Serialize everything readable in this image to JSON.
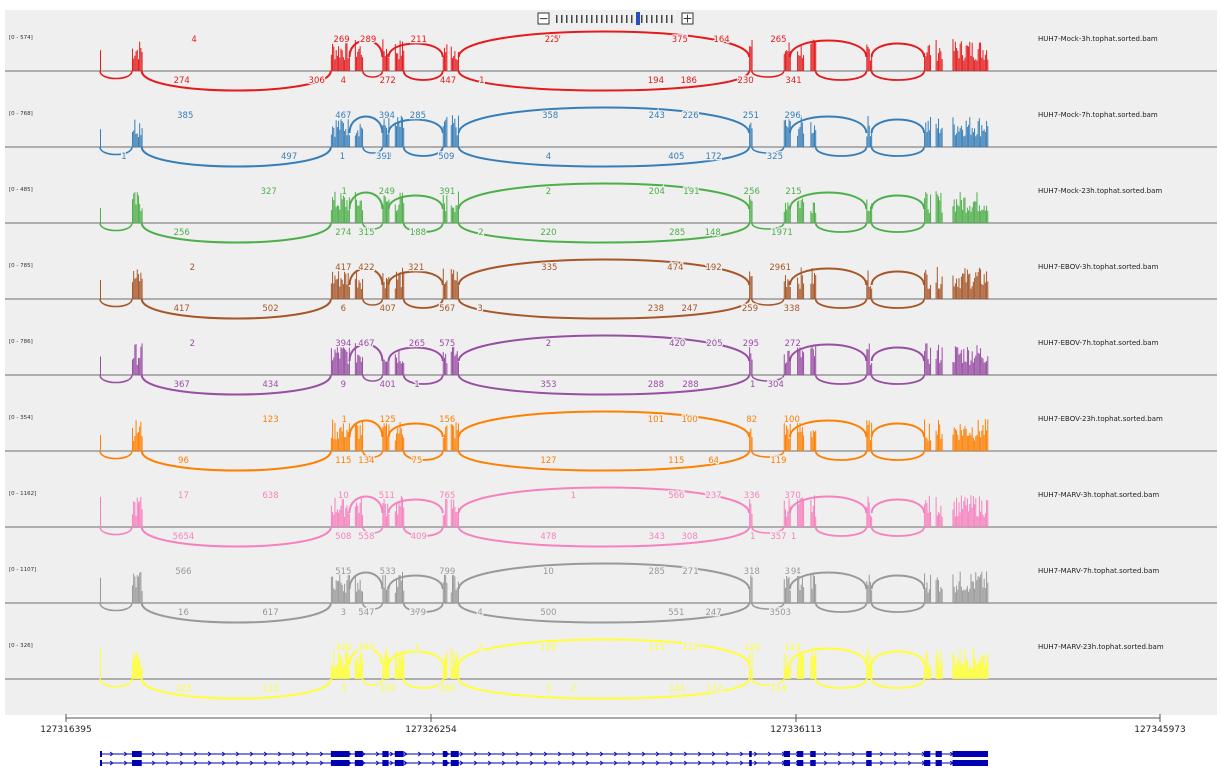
{
  "zoom": {
    "minus": "−",
    "plus": "+",
    "ticks": 24,
    "current": 16
  },
  "tracks": [
    {
      "name": "HUH7-Mock-3h.tophat.sorted.bam",
      "range": "[0 - 574]",
      "color": "#e41a1c",
      "above": [
        [
          "269",
          0.272
        ],
        [
          "289",
          0.302
        ],
        [
          "211",
          0.359
        ],
        [
          "227",
          0.51
        ],
        [
          "5",
          0.514
        ],
        [
          "375",
          0.653
        ],
        [
          "164",
          0.7
        ],
        [
          "265",
          0.764
        ],
        [
          "4",
          0.106
        ]
      ],
      "below": [
        [
          "274",
          0.092
        ],
        [
          "306",
          0.244
        ],
        [
          "4",
          0.274
        ],
        [
          "272",
          0.324
        ],
        [
          "447",
          0.392
        ],
        [
          "1",
          0.43
        ],
        [
          "194",
          0.626
        ],
        [
          "186",
          0.663
        ],
        [
          "230",
          0.727
        ],
        [
          "341",
          0.781
        ]
      ]
    },
    {
      "name": "HUH7-Mock-7h.tophat.sorted.bam",
      "range": "[0 - 768]",
      "color": "#377eb8",
      "above": [
        [
          "385",
          0.096
        ],
        [
          "427",
          0.274
        ],
        [
          "394",
          0.323
        ],
        [
          "285",
          0.358
        ],
        [
          "358",
          0.507
        ],
        [
          "243",
          0.627
        ],
        [
          "226",
          0.665
        ],
        [
          "251",
          0.733
        ],
        [
          "296",
          0.78
        ],
        [
          "6",
          0.274
        ]
      ],
      "below": [
        [
          "1",
          0.027
        ],
        [
          "497",
          0.213
        ],
        [
          "1",
          0.273
        ],
        [
          "394",
          0.32
        ],
        [
          "1",
          0.325
        ],
        [
          "509",
          0.39
        ],
        [
          "4",
          0.505
        ],
        [
          "405",
          0.649
        ],
        [
          "172",
          0.691
        ],
        [
          "325",
          0.76
        ]
      ]
    },
    {
      "name": "HUH7-Mock-23h.tophat.sorted.bam",
      "range": "[0 - 485]",
      "color": "#4daf4a",
      "above": [
        [
          "327",
          0.19
        ],
        [
          "249",
          0.323
        ],
        [
          "391",
          0.391
        ],
        [
          "2",
          0.505
        ],
        [
          "204",
          0.627
        ],
        [
          "191",
          0.666
        ],
        [
          "256",
          0.734
        ],
        [
          "215",
          0.781
        ],
        [
          "1",
          0.275
        ]
      ],
      "below": [
        [
          "256",
          0.092
        ],
        [
          "274",
          0.274
        ],
        [
          "315",
          0.3
        ],
        [
          "188",
          0.358
        ],
        [
          "2",
          0.429
        ],
        [
          "220",
          0.505
        ],
        [
          "285",
          0.65
        ],
        [
          "148",
          0.69
        ],
        [
          "1971",
          0.768
        ]
      ]
    },
    {
      "name": "HUH7-EBOV-3h.tophat.sorted.bam",
      "range": "[0 - 785]",
      "color": "#a65628",
      "above": [
        [
          "417",
          0.274
        ],
        [
          "422",
          0.3
        ],
        [
          "321",
          0.356
        ],
        [
          "375",
          0.506
        ],
        [
          "3",
          0.506
        ],
        [
          "474",
          0.648
        ],
        [
          "192",
          0.691
        ],
        [
          "2961",
          0.766
        ],
        [
          "2",
          0.104
        ]
      ],
      "below": [
        [
          "417",
          0.092
        ],
        [
          "502",
          0.192
        ],
        [
          "6",
          0.274
        ],
        [
          "407",
          0.324
        ],
        [
          "567",
          0.391
        ],
        [
          "3",
          0.428
        ],
        [
          "238",
          0.626
        ],
        [
          "247",
          0.664
        ],
        [
          "259",
          0.732
        ],
        [
          "338",
          0.779
        ]
      ]
    },
    {
      "name": "HUH7-EBOV-7h.tophat.sorted.bam",
      "range": "[0 - 786]",
      "color": "#984ea3",
      "above": [
        [
          "394",
          0.274
        ],
        [
          "467",
          0.3
        ],
        [
          "265",
          0.357
        ],
        [
          "575",
          0.391
        ],
        [
          "2",
          0.505
        ],
        [
          "420",
          0.65
        ],
        [
          "205",
          0.692
        ],
        [
          "295",
          0.733
        ],
        [
          "272",
          0.78
        ],
        [
          "2",
          0.104
        ]
      ],
      "below": [
        [
          "367",
          0.092
        ],
        [
          "434",
          0.192
        ],
        [
          "9",
          0.274
        ],
        [
          "401",
          0.324
        ],
        [
          "1",
          0.357
        ],
        [
          "353",
          0.505
        ],
        [
          "288",
          0.626
        ],
        [
          "288",
          0.665
        ],
        [
          "1",
          0.735
        ],
        [
          "304",
          0.761
        ]
      ]
    },
    {
      "name": "HUH7-EBOV-23h.tophat.sorted.bam",
      "range": "[0 - 354]",
      "color": "#ff7f00",
      "above": [
        [
          "123",
          0.192
        ],
        [
          "125",
          0.324
        ],
        [
          "156",
          0.391
        ],
        [
          "101",
          0.626
        ],
        [
          "100",
          0.664
        ],
        [
          "82",
          0.734
        ],
        [
          "100",
          0.779
        ],
        [
          "1",
          0.275
        ]
      ],
      "below": [
        [
          "96",
          0.094
        ],
        [
          "115",
          0.274
        ],
        [
          "134",
          0.3
        ],
        [
          "75",
          0.357
        ],
        [
          "127",
          0.505
        ],
        [
          "115",
          0.649
        ],
        [
          "64",
          0.691
        ],
        [
          "119",
          0.764
        ]
      ]
    },
    {
      "name": "HUH7-MARV-3h.tophat.sorted.bam",
      "range": "[0 - 1162]",
      "color": "#f781bf",
      "above": [
        [
          "17",
          0.094
        ],
        [
          "638",
          0.192
        ],
        [
          "10",
          0.274
        ],
        [
          "511",
          0.323
        ],
        [
          "765",
          0.391
        ],
        [
          "1",
          0.533
        ],
        [
          "566",
          0.649
        ],
        [
          "237",
          0.691
        ],
        [
          "336",
          0.734
        ],
        [
          "370",
          0.78
        ]
      ],
      "below": [
        [
          "5654",
          0.094
        ],
        [
          "508",
          0.274
        ],
        [
          "558",
          0.3
        ],
        [
          "409",
          0.359
        ],
        [
          "478",
          0.505
        ],
        [
          "343",
          0.627
        ],
        [
          "308",
          0.664
        ],
        [
          "1",
          0.735
        ],
        [
          "357",
          0.764
        ],
        [
          "1",
          0.781
        ]
      ]
    },
    {
      "name": "HUH7-MARV-7h.tophat.sorted.bam",
      "range": "[0 - 1107]",
      "color": "#999999",
      "above": [
        [
          "566",
          0.094
        ],
        [
          "535",
          0.274
        ],
        [
          "533",
          0.324
        ],
        [
          "799",
          0.391
        ],
        [
          "10",
          0.505
        ],
        [
          "285",
          0.627
        ],
        [
          "271",
          0.665
        ],
        [
          "318",
          0.734
        ],
        [
          "364",
          0.78
        ],
        [
          "1",
          0.274
        ],
        [
          "9",
          0.781
        ]
      ],
      "below": [
        [
          "16",
          0.094
        ],
        [
          "617",
          0.192
        ],
        [
          "3",
          0.274
        ],
        [
          "547",
          0.3
        ],
        [
          "379",
          0.358
        ],
        [
          "4",
          0.428
        ],
        [
          "500",
          0.505
        ],
        [
          "551",
          0.649
        ],
        [
          "247",
          0.691
        ],
        [
          "3503",
          0.766
        ]
      ]
    },
    {
      "name": "HUH7-MARV-23h.tophat.sorted.bam",
      "range": "[0 - 326]",
      "color": "#ffff33",
      "above": [
        [
          "326",
          0.274
        ],
        [
          "285",
          0.3
        ],
        [
          "1",
          0.357
        ],
        [
          "2",
          0.428
        ],
        [
          "120",
          0.505
        ],
        [
          "115",
          0.627
        ],
        [
          "112",
          0.665
        ],
        [
          "120",
          0.734
        ],
        [
          "123",
          0.78
        ]
      ],
      "below": [
        [
          "123",
          0.094
        ],
        [
          "113",
          0.192
        ],
        [
          "3",
          0.274
        ],
        [
          "100",
          0.324
        ],
        [
          "280",
          0.391
        ],
        [
          "3",
          0.505
        ],
        [
          "2",
          0.533
        ],
        [
          "141",
          0.65
        ],
        [
          "132",
          0.692
        ],
        [
          "114",
          0.764
        ]
      ]
    }
  ],
  "ruler": {
    "ticks": [
      "127316395",
      "127326254",
      "127336113",
      "127345973"
    ]
  },
  "gene_tracks": 2,
  "colors": {
    "bg": "#efefef",
    "axis": "#888888",
    "gene": "#0000b2"
  }
}
